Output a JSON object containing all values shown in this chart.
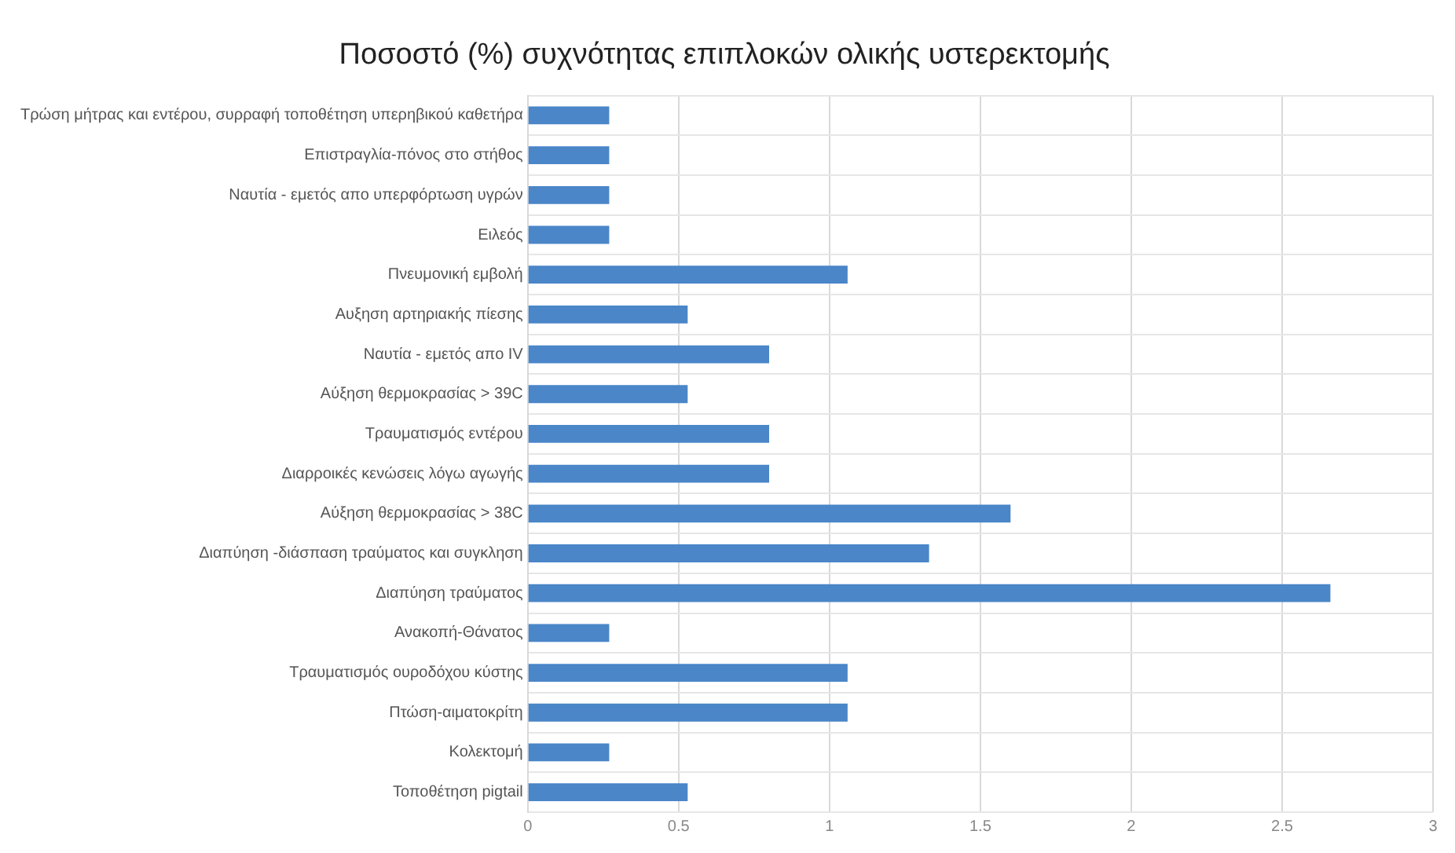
{
  "chart_data": {
    "type": "bar",
    "orientation": "horizontal",
    "title": "Ποσοστό (%) συχνότητας επιπλοκών ολικής υστερεκτομής",
    "categories": [
      "Τρώση μήτρας και εντέρου, συρραφή τοποθέτηση υπερηβικού καθετήρα",
      "Επιστραγλία-πόνος στο στήθος",
      "Ναυτία - εμετός απο υπερφόρτωση υγρών",
      "Ειλεός",
      "Πνευμονική εμβολή",
      "Αυξηση αρτηριακής πίεσης",
      "Ναυτία - εμετός απο IV",
      "Αύξηση θερμοκρασίας > 39C",
      "Τραυματισμός εντέρου",
      "Διαρροικές κενώσεις λόγω αγωγής",
      "Αύξηση θερμοκρασίας > 38C",
      "Διαπύηση -διάσπαση τραύματος και συγκληση",
      "Διαπύηση τραύματος",
      "Ανακοπή-Θάνατος",
      "Τραυματισμός ουροδόχου κύστης",
      "Πτώση-αιματοκρίτη",
      "Κολεκτομή",
      "Τοποθέτηση pigtail"
    ],
    "values": [
      0.27,
      0.27,
      0.27,
      0.27,
      1.06,
      0.53,
      0.8,
      0.53,
      0.8,
      0.8,
      1.6,
      1.33,
      2.66,
      0.27,
      1.06,
      1.06,
      0.27,
      0.53
    ],
    "color": "#4a86c8",
    "xlim": [
      0,
      3
    ],
    "xticks": [
      0,
      0.5,
      1,
      1.5,
      2,
      2.5,
      3
    ],
    "grid": true
  }
}
